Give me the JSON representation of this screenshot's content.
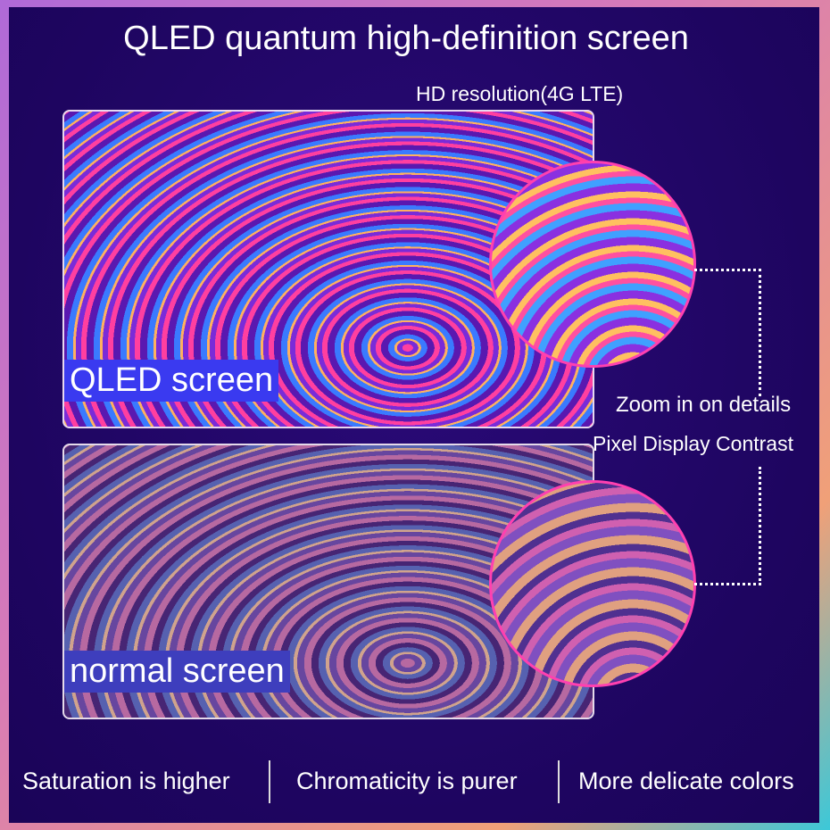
{
  "title": "QLED quantum high-definition screen",
  "subtitle": "HD resolution(4G LTE)",
  "panels": {
    "qled_label": "QLED screen",
    "normal_label": "normal screen"
  },
  "callout": {
    "zoom": "Zoom in on details",
    "pixel": "Pixel Display Contrast"
  },
  "features": [
    "Saturation is higher",
    "Chromaticity is purer",
    "More delicate colors"
  ],
  "colors": {
    "background": "#1e0560",
    "label_bg": "#3a3af0",
    "circle_border": "#ff40b0"
  }
}
